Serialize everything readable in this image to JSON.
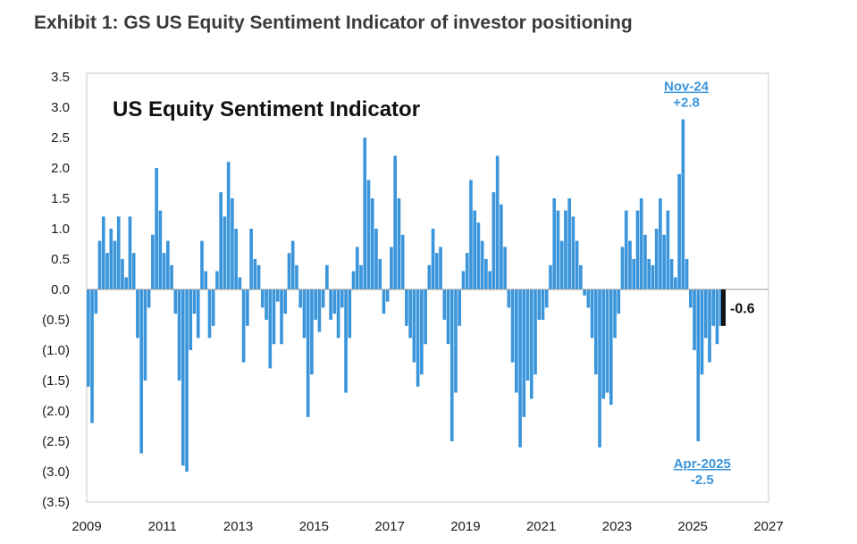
{
  "title": "Exhibit 1: GS US Equity Sentiment Indicator of investor positioning",
  "chart_data": {
    "type": "bar",
    "title": "US Equity Sentiment Indicator",
    "xlim": [
      2009,
      2027
    ],
    "ylim": [
      -3.5,
      3.5
    ],
    "x_ticks": [
      2009,
      2011,
      2013,
      2015,
      2017,
      2019,
      2021,
      2023,
      2025,
      2027
    ],
    "x_tick_labels": [
      "2009",
      "2011",
      "2013",
      "2015",
      "2017",
      "2019",
      "2021",
      "2023",
      "2025",
      "2027"
    ],
    "y_ticks": [
      3.5,
      3.0,
      2.5,
      2.0,
      1.5,
      1.0,
      0.5,
      0.0,
      -0.5,
      -1.0,
      -1.5,
      -2.0,
      -2.5,
      -3.0,
      -3.5
    ],
    "y_tick_labels": [
      "3.5",
      "3.0",
      "2.5",
      "2.0",
      "1.5",
      "1.0",
      "0.5",
      "0.0",
      "(0.5)",
      "(1.0)",
      "(1.5)",
      "(2.0)",
      "(2.5)",
      "(3.0)",
      "(3.5)"
    ],
    "bar_color": "#3b95db",
    "latest_color": "#111111",
    "series": [
      {
        "name": "US Equity Sentiment Indicator",
        "approx_weekly_values_estimated": true,
        "x": [
          2009.0,
          2009.1,
          2009.2,
          2009.3,
          2009.4,
          2009.5,
          2009.6,
          2009.7,
          2009.8,
          2009.9,
          2010.0,
          2010.1,
          2010.2,
          2010.3,
          2010.4,
          2010.5,
          2010.6,
          2010.7,
          2010.8,
          2010.9,
          2011.0,
          2011.1,
          2011.2,
          2011.3,
          2011.4,
          2011.5,
          2011.6,
          2011.7,
          2011.8,
          2011.9,
          2012.0,
          2012.1,
          2012.2,
          2012.3,
          2012.4,
          2012.5,
          2012.6,
          2012.7,
          2012.8,
          2012.9,
          2013.0,
          2013.1,
          2013.2,
          2013.3,
          2013.4,
          2013.5,
          2013.6,
          2013.7,
          2013.8,
          2013.9,
          2014.0,
          2014.1,
          2014.2,
          2014.3,
          2014.4,
          2014.5,
          2014.6,
          2014.7,
          2014.8,
          2014.9,
          2015.0,
          2015.1,
          2015.2,
          2015.3,
          2015.4,
          2015.5,
          2015.6,
          2015.7,
          2015.8,
          2015.9,
          2016.0,
          2016.1,
          2016.2,
          2016.3,
          2016.4,
          2016.5,
          2016.6,
          2016.7,
          2016.8,
          2016.9,
          2017.0,
          2017.1,
          2017.2,
          2017.3,
          2017.4,
          2017.5,
          2017.6,
          2017.7,
          2017.8,
          2017.9,
          2018.0,
          2018.1,
          2018.2,
          2018.3,
          2018.4,
          2018.5,
          2018.6,
          2018.7,
          2018.8,
          2018.9,
          2019.0,
          2019.1,
          2019.2,
          2019.3,
          2019.4,
          2019.5,
          2019.6,
          2019.7,
          2019.8,
          2019.9,
          2020.0,
          2020.1,
          2020.2,
          2020.3,
          2020.4,
          2020.5,
          2020.6,
          2020.7,
          2020.8,
          2020.9,
          2021.0,
          2021.1,
          2021.2,
          2021.3,
          2021.4,
          2021.5,
          2021.6,
          2021.7,
          2021.8,
          2021.9,
          2022.0,
          2022.1,
          2022.2,
          2022.3,
          2022.4,
          2022.5,
          2022.6,
          2022.7,
          2022.8,
          2022.9,
          2023.0,
          2023.1,
          2023.2,
          2023.3,
          2023.4,
          2023.5,
          2023.6,
          2023.7,
          2023.8,
          2023.9,
          2024.0,
          2024.1,
          2024.2,
          2024.3,
          2024.4,
          2024.5,
          2024.6,
          2024.7,
          2024.8,
          2024.9,
          2025.0,
          2025.1,
          2025.2,
          2025.3,
          2025.4,
          2025.5,
          2025.6,
          2025.7
        ],
        "values": [
          -1.6,
          -2.2,
          -0.4,
          0.8,
          1.2,
          0.6,
          1.0,
          0.8,
          1.2,
          0.5,
          0.2,
          1.2,
          0.6,
          -0.8,
          -2.7,
          -1.5,
          -0.3,
          0.9,
          2.0,
          1.3,
          0.6,
          0.8,
          0.4,
          -0.4,
          -1.5,
          -2.9,
          -3.0,
          -1.0,
          -0.4,
          -0.8,
          0.8,
          0.3,
          -0.8,
          -0.6,
          0.3,
          1.6,
          1.2,
          2.1,
          1.5,
          1.0,
          0.2,
          -1.2,
          -0.6,
          1.0,
          0.5,
          0.4,
          -0.3,
          -0.5,
          -1.3,
          -0.9,
          -0.2,
          -0.9,
          -0.4,
          0.6,
          0.8,
          0.4,
          -0.3,
          -0.8,
          -2.1,
          -1.4,
          -0.5,
          -0.7,
          -0.3,
          0.4,
          -0.5,
          -0.4,
          -0.8,
          -0.3,
          -1.7,
          -0.8,
          0.3,
          0.7,
          0.4,
          2.5,
          1.8,
          1.5,
          1.0,
          0.5,
          -0.4,
          -0.2,
          0.7,
          2.2,
          1.5,
          0.9,
          -0.6,
          -0.8,
          -1.2,
          -1.6,
          -1.4,
          -0.9,
          0.4,
          1.0,
          0.6,
          0.7,
          -0.5,
          -0.9,
          -2.5,
          -1.7,
          -0.6,
          0.3,
          0.6,
          1.8,
          1.3,
          1.1,
          0.8,
          0.5,
          0.3,
          1.6,
          2.2,
          1.4,
          0.7,
          -0.3,
          -1.2,
          -1.7,
          -2.6,
          -2.1,
          -1.5,
          -1.8,
          -1.4,
          -0.5,
          -0.5,
          -0.3,
          0.4,
          1.5,
          1.3,
          0.8,
          1.3,
          1.5,
          1.2,
          0.8,
          0.4,
          -0.1,
          -0.3,
          -0.8,
          -1.4,
          -2.6,
          -1.8,
          -1.7,
          -1.9,
          -0.8,
          -0.4,
          0.7,
          1.3,
          0.8,
          0.5,
          1.3,
          1.5,
          0.9,
          0.5,
          0.4,
          1.0,
          1.5,
          0.9,
          1.3,
          0.5,
          0.2,
          1.9,
          2.8,
          0.5,
          -0.3,
          -1.0,
          -2.5,
          -1.4,
          -0.8,
          -1.2,
          -0.6,
          -0.9,
          -0.6
        ]
      }
    ],
    "latest": {
      "x": 2025.75,
      "value": -0.6,
      "label": "-0.6"
    },
    "annotations": [
      {
        "x": 2024.83,
        "value": 2.8,
        "date_label": "Nov-24",
        "value_label": "+2.8"
      },
      {
        "x": 2025.25,
        "value": -2.5,
        "date_label": "Apr-2025",
        "value_label": "-2.5"
      }
    ]
  }
}
